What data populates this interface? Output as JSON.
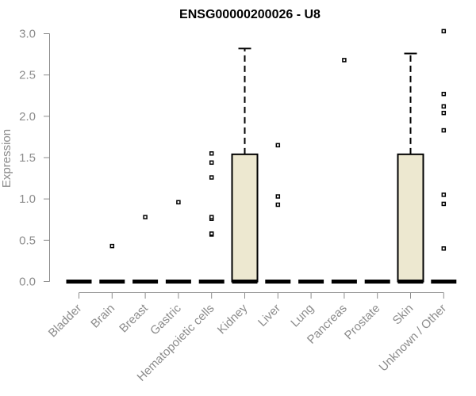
{
  "chart_data": {
    "type": "box",
    "title": "ENSG00000200026 - U8",
    "xlabel": "",
    "ylabel": "Expression",
    "ylim": [
      0,
      3.0
    ],
    "yticks": [
      "0.0",
      "0.5",
      "1.0",
      "1.5",
      "2.0",
      "2.5",
      "3.0"
    ],
    "grid": false,
    "box_fill": "#ede8d0",
    "line_color": "#000000",
    "axis_color": "#8c8c8c",
    "categories": [
      "Bladder",
      "Brain",
      "Breast",
      "Gastric",
      "Hematopoietic cells",
      "Kidney",
      "Liver",
      "Lung",
      "Pancreas",
      "Prostate",
      "Skin",
      "Unknown / Other"
    ],
    "boxes": [
      {
        "category": "Bladder",
        "q1": 0,
        "median": 0,
        "q3": 0,
        "whisker_low": 0,
        "whisker_high": 0,
        "outliers": []
      },
      {
        "category": "Brain",
        "q1": 0,
        "median": 0,
        "q3": 0,
        "whisker_low": 0,
        "whisker_high": 0,
        "outliers": [
          0.43
        ]
      },
      {
        "category": "Breast",
        "q1": 0,
        "median": 0,
        "q3": 0,
        "whisker_low": 0,
        "whisker_high": 0,
        "outliers": [
          0.78
        ]
      },
      {
        "category": "Gastric",
        "q1": 0,
        "median": 0,
        "q3": 0,
        "whisker_low": 0,
        "whisker_high": 0,
        "outliers": [
          0.96
        ]
      },
      {
        "category": "Hematopoietic cells",
        "q1": 0,
        "median": 0,
        "q3": 0,
        "whisker_low": 0,
        "whisker_high": 0,
        "outliers": [
          0.57,
          0.58,
          0.76,
          0.78,
          1.26,
          1.44,
          1.55
        ]
      },
      {
        "category": "Kidney",
        "q1": 0,
        "median": 0,
        "q3": 1.54,
        "whisker_low": 0,
        "whisker_high": 2.82,
        "outliers": []
      },
      {
        "category": "Liver",
        "q1": 0,
        "median": 0,
        "q3": 0,
        "whisker_low": 0,
        "whisker_high": 0,
        "outliers": [
          0.93,
          1.03,
          1.65
        ]
      },
      {
        "category": "Lung",
        "q1": 0,
        "median": 0,
        "q3": 0,
        "whisker_low": 0,
        "whisker_high": 0,
        "outliers": []
      },
      {
        "category": "Pancreas",
        "q1": 0,
        "median": 0,
        "q3": 0,
        "whisker_low": 0,
        "whisker_high": 0,
        "outliers": [
          2.68
        ]
      },
      {
        "category": "Prostate",
        "q1": 0,
        "median": 0,
        "q3": 0,
        "whisker_low": 0,
        "whisker_high": 0,
        "outliers": []
      },
      {
        "category": "Skin",
        "q1": 0,
        "median": 0,
        "q3": 1.54,
        "whisker_low": 0,
        "whisker_high": 2.76,
        "outliers": []
      },
      {
        "category": "Unknown / Other",
        "q1": 0,
        "median": 0,
        "q3": 0,
        "whisker_low": 0,
        "whisker_high": 0,
        "outliers": [
          0.4,
          0.94,
          1.05,
          1.83,
          2.04,
          2.12,
          2.27,
          3.03
        ]
      }
    ]
  }
}
